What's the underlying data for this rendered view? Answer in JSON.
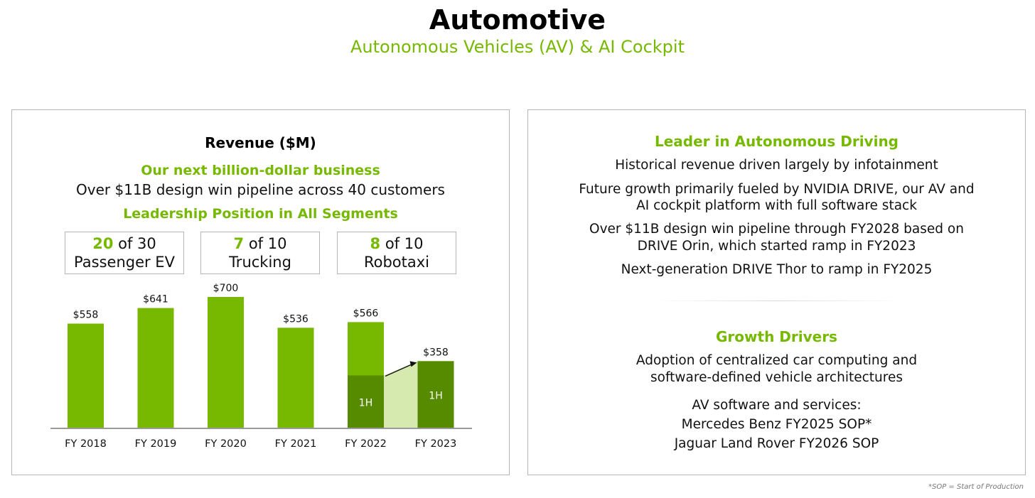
{
  "header": {
    "title": "Automotive",
    "subtitle": "Autonomous Vehicles (AV) & AI Cockpit"
  },
  "left_panel": {
    "revenue_title": "Revenue ($M)",
    "tagline": "Our next billion-dollar business",
    "pipeline": "Over $11B design win pipeline across 40 customers",
    "leadership": "Leadership Position in All Segments",
    "segments": [
      {
        "num": "20",
        "of": " of 30",
        "label": "Passenger EV"
      },
      {
        "num": "7",
        "of": " of 10",
        "label": "Trucking"
      },
      {
        "num": "8",
        "of": " of 10",
        "label": "Robotaxi"
      }
    ]
  },
  "chart_data": {
    "type": "bar",
    "categories": [
      "FY 2018",
      "FY 2019",
      "FY 2020",
      "FY 2021",
      "FY 2022",
      "FY 2023"
    ],
    "values": [
      558,
      641,
      700,
      536,
      566,
      358
    ],
    "value_labels": [
      "$558",
      "$641",
      "$700",
      "$536",
      "$566",
      "$358"
    ],
    "first_half": {
      "FY 2022": {
        "value": 282,
        "label": "1H"
      },
      "FY 2023": {
        "value": 358,
        "label": "1H"
      }
    },
    "annotation": "arrow from FY 2022 1H to FY 2023 1H",
    "ylim": [
      0,
      700
    ],
    "grid": false,
    "colors": {
      "bar": "#76b900",
      "first_half": "#568b00",
      "band": "#d6eab0",
      "baseline": "#9a9a9a"
    }
  },
  "right_panel": {
    "leader_title": "Leader in Autonomous Driving",
    "leader_lines": [
      "Historical revenue driven largely by infotainment",
      "Future growth primarily fueled by NVIDIA DRIVE, our AV and",
      "AI cockpit platform with full software stack",
      "Over $11B design win pipeline through FY2028 based on",
      "DRIVE Orin, which started ramp in FY2023",
      "Next-generation DRIVE Thor to ramp in FY2025"
    ],
    "growth_title": "Growth Drivers",
    "growth_lines": [
      "Adoption of centralized car computing and",
      "software-defined vehicle architectures",
      "AV software and services:",
      "Mercedes Benz FY2025 SOP*",
      "Jaguar Land Rover FY2026 SOP"
    ]
  },
  "footnote": "*SOP = Start of Production",
  "colors": {
    "accent": "#76b900",
    "text": "#111111",
    "border": "#b5b5b5"
  }
}
